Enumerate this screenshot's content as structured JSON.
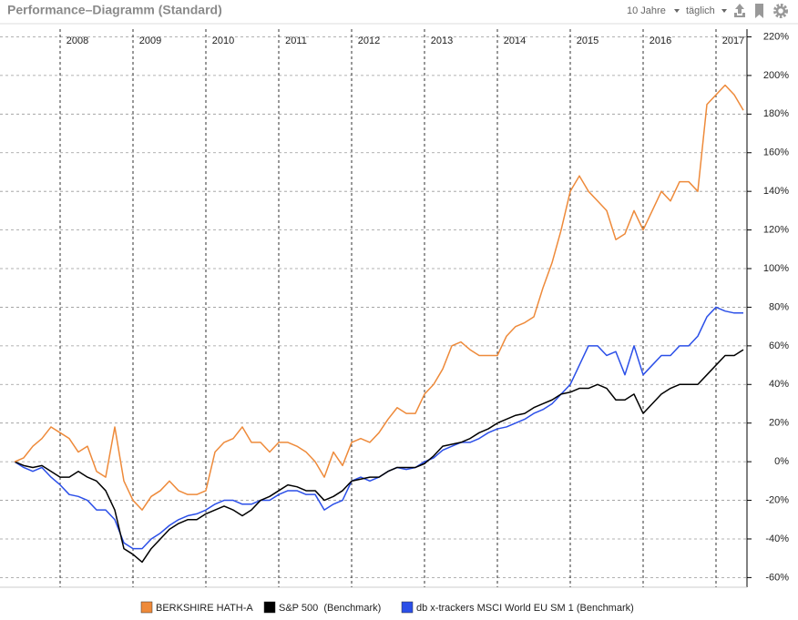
{
  "header": {
    "title": "Performance–Diagramm (Standard)",
    "range": "10 Jahre",
    "interval": "täglich"
  },
  "chart_data": {
    "type": "line",
    "categories": [
      null,
      null,
      null,
      null,
      null,
      "2008",
      null,
      null,
      null,
      null,
      null,
      null,
      null,
      "2009",
      null,
      null,
      null,
      null,
      null,
      null,
      null,
      "2010",
      null,
      null,
      null,
      null,
      null,
      null,
      null,
      "2011",
      null,
      null,
      null,
      null,
      null,
      null,
      null,
      "2012",
      null,
      null,
      null,
      null,
      null,
      null,
      null,
      "2013",
      null,
      null,
      null,
      null,
      null,
      null,
      null,
      "2014",
      null,
      null,
      null,
      null,
      null,
      null,
      null,
      "2015",
      null,
      null,
      null,
      null,
      null,
      null,
      null,
      "2016",
      null,
      null,
      null,
      null,
      null,
      null,
      null,
      "2017",
      null,
      null,
      null
    ],
    "series": [
      {
        "name": "BERKSHIRE HATH-A",
        "color": "#ee8a3a",
        "values": [
          0,
          2,
          8,
          12,
          18,
          15,
          12,
          5,
          8,
          -5,
          -8,
          18,
          -10,
          -20,
          -25,
          -18,
          -15,
          -10,
          -15,
          -17,
          -17,
          -15,
          5,
          10,
          12,
          18,
          10,
          10,
          5,
          10,
          10,
          8,
          5,
          0,
          -8,
          5,
          -2,
          10,
          12,
          10,
          15,
          22,
          28,
          25,
          25,
          35,
          40,
          48,
          60,
          62,
          58,
          55,
          55,
          55,
          65,
          70,
          72,
          75,
          90,
          103,
          120,
          140,
          148,
          140,
          135,
          130,
          115,
          118,
          130,
          120,
          130,
          140,
          135,
          145,
          145,
          140,
          185,
          190,
          195,
          190,
          182
        ]
      },
      {
        "name": "S&P 500  (Benchmark)",
        "color": "#000000",
        "values": [
          0,
          -2,
          -3,
          -2,
          -5,
          -8,
          -8,
          -5,
          -8,
          -10,
          -15,
          -25,
          -45,
          -48,
          -52,
          -45,
          -40,
          -35,
          -32,
          -30,
          -30,
          -27,
          -25,
          -23,
          -25,
          -28,
          -25,
          -20,
          -18,
          -15,
          -12,
          -13,
          -15,
          -15,
          -20,
          -18,
          -15,
          -10,
          -9,
          -8,
          -8,
          -5,
          -3,
          -3,
          -3,
          -1,
          3,
          8,
          9,
          10,
          12,
          15,
          17,
          20,
          22,
          24,
          25,
          28,
          30,
          32,
          35,
          36,
          38,
          38,
          40,
          38,
          32,
          32,
          35,
          25,
          30,
          35,
          38,
          40,
          40,
          40,
          45,
          50,
          55,
          55,
          58
        ]
      },
      {
        "name": "db x-trackers MSCI World EU SM 1 (Benchmark)",
        "color": "#2b4fe8",
        "values": [
          0,
          -3,
          -5,
          -3,
          -8,
          -12,
          -17,
          -18,
          -20,
          -25,
          -25,
          -30,
          -42,
          -45,
          -45,
          -40,
          -37,
          -33,
          -30,
          -28,
          -27,
          -25,
          -22,
          -20,
          -20,
          -22,
          -22,
          -20,
          -20,
          -17,
          -15,
          -15,
          -17,
          -17,
          -25,
          -22,
          -20,
          -10,
          -8,
          -10,
          -8,
          -5,
          -3,
          -4,
          -3,
          0,
          2,
          6,
          8,
          10,
          10,
          12,
          15,
          17,
          18,
          20,
          22,
          25,
          27,
          30,
          35,
          40,
          50,
          60,
          60,
          55,
          57,
          45,
          60,
          45,
          50,
          55,
          55,
          60,
          60,
          65,
          75,
          80,
          78,
          77,
          77
        ]
      }
    ],
    "ylim": [
      -65,
      224
    ],
    "yticks": [
      {
        "value": -60,
        "label": "-60%"
      },
      {
        "value": -40,
        "label": "-40%"
      },
      {
        "value": -20,
        "label": "-20%"
      },
      {
        "value": 0,
        "label": "0%"
      },
      {
        "value": 20,
        "label": "20%"
      },
      {
        "value": 40,
        "label": "40%"
      },
      {
        "value": 60,
        "label": "60%"
      },
      {
        "value": 80,
        "label": "80%"
      },
      {
        "value": 100,
        "label": "100%"
      },
      {
        "value": 120,
        "label": "120%"
      },
      {
        "value": 140,
        "label": "140%"
      },
      {
        "value": 160,
        "label": "160%"
      },
      {
        "value": 180,
        "label": "180%"
      },
      {
        "value": 200,
        "label": "200%"
      },
      {
        "value": 220,
        "label": "220%"
      }
    ],
    "grid": true
  }
}
